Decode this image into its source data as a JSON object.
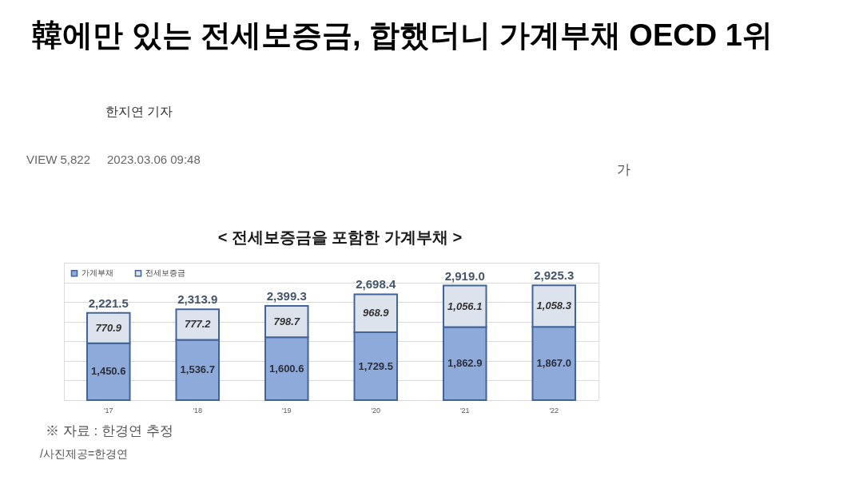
{
  "chart_data": {
    "type": "bar",
    "title": "< 전세보증금을 포함한 가계부채 >",
    "annotations": [
      "韓에만 있는 전세보증금, 합했더니 가계부채 OECD 1위",
      "한지연 기자",
      "VIEW 5,822",
      "2023.03.06 09:48",
      "가",
      "※ 자료 : 한경연 추정",
      "/사진제공=한경연"
    ],
    "categories": [
      "'17",
      "'18",
      "'19",
      "'20",
      "'21",
      "'22"
    ],
    "series": [
      {
        "name": "가계부채",
        "color": "#8eaadb",
        "values": [
          1450.6,
          1536.7,
          1600.6,
          1729.5,
          1862.9,
          1867.0
        ],
        "value_labels": [
          "1,450.6",
          "1,536.7",
          "1,600.6",
          "1,729.5",
          "1,862.9",
          "1,867.0"
        ]
      },
      {
        "name": "전세보증금",
        "color": "#dde3ec",
        "values": [
          770.9,
          777.2,
          798.7,
          968.9,
          1056.1,
          1058.3
        ],
        "value_labels": [
          "770.9",
          "777.2",
          "798.7",
          "968.9",
          "1,056.1",
          "1,058.3"
        ]
      }
    ],
    "stacked": true,
    "totals": [
      "2,221.5",
      "2,313.9",
      "2,399.3",
      "2,698.4",
      "2,919.0",
      "2,925.3"
    ],
    "ylim": [
      0,
      3500
    ],
    "yticks": [
      {
        "value": 0,
        "label": null
      },
      {
        "value": 500,
        "label": null
      },
      {
        "value": 1000,
        "label": null
      },
      {
        "value": 1500,
        "label": null
      },
      {
        "value": 2000,
        "label": null
      },
      {
        "value": 2500,
        "label": null
      },
      {
        "value": 3000,
        "label": null
      },
      {
        "value": 3500,
        "label": null
      }
    ],
    "tick_labels": "x",
    "grid": "y",
    "legend": "top left"
  }
}
